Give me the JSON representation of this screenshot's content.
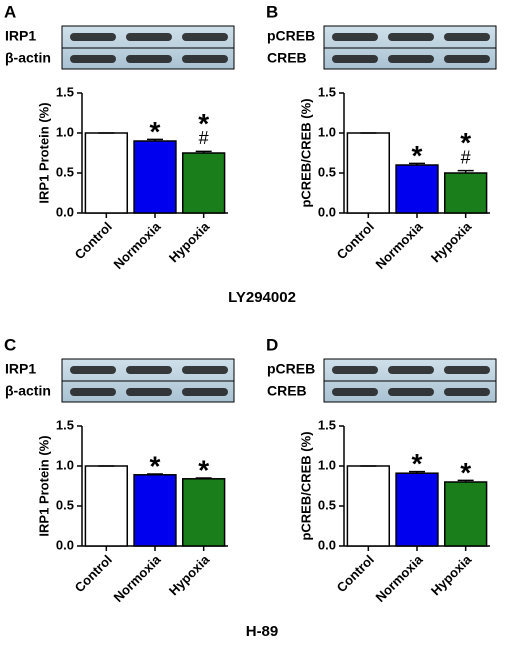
{
  "chart_data": [
    {
      "type": "bar",
      "panel": "A",
      "blot_labels": [
        "IRP1",
        "β-actin"
      ],
      "ylabel": "IRP1 Protein (%)",
      "categories": [
        "Control",
        "Normoxia",
        "Hypoxia"
      ],
      "values": [
        1.0,
        0.9,
        0.75
      ],
      "errors": [
        0,
        0.02,
        0.02
      ],
      "colors": [
        "#ffffff",
        "#0000ee",
        "#1a7f1a"
      ],
      "annotations": [
        {
          "category": "Normoxia",
          "text": "*"
        },
        {
          "category": "Hypoxia",
          "text": "*"
        },
        {
          "category": "Hypoxia",
          "text": "#"
        }
      ],
      "ylim": [
        0,
        1.5
      ],
      "yticks": [
        {
          "value": 0,
          "label": "0.0"
        },
        {
          "value": 0.5,
          "label": "0.5"
        },
        {
          "value": 1,
          "label": "1.0"
        },
        {
          "value": 1.5,
          "label": "1.5"
        }
      ]
    },
    {
      "type": "bar",
      "panel": "B",
      "blot_labels": [
        "pCREB",
        "CREB"
      ],
      "ylabel": "pCREB/CREB (%)",
      "categories": [
        "Control",
        "Normoxia",
        "Hypoxia"
      ],
      "values": [
        1.0,
        0.6,
        0.5
      ],
      "errors": [
        0,
        0.02,
        0.03
      ],
      "colors": [
        "#ffffff",
        "#0000ee",
        "#1a7f1a"
      ],
      "annotations": [
        {
          "category": "Normoxia",
          "text": "*"
        },
        {
          "category": "Hypoxia",
          "text": "*"
        },
        {
          "category": "Hypoxia",
          "text": "#"
        }
      ],
      "ylim": [
        0,
        1.5
      ],
      "yticks": [
        {
          "value": 0,
          "label": "0.0"
        },
        {
          "value": 0.5,
          "label": "0.5"
        },
        {
          "value": 1,
          "label": "1.0"
        },
        {
          "value": 1.5,
          "label": "1.5"
        }
      ]
    },
    {
      "type": "bar",
      "panel": "C",
      "blot_labels": [
        "IRP1",
        "β-actin"
      ],
      "ylabel": "IRP1 Protein (%)",
      "categories": [
        "Control",
        "Normoxia",
        "Hypoxia"
      ],
      "values": [
        1.0,
        0.89,
        0.84
      ],
      "errors": [
        0,
        0.01,
        0.01
      ],
      "colors": [
        "#ffffff",
        "#0000ee",
        "#1a7f1a"
      ],
      "annotations": [
        {
          "category": "Normoxia",
          "text": "*"
        },
        {
          "category": "Hypoxia",
          "text": "*"
        }
      ],
      "ylim": [
        0,
        1.5
      ],
      "yticks": [
        {
          "value": 0,
          "label": "0.0"
        },
        {
          "value": 0.5,
          "label": "0.5"
        },
        {
          "value": 1,
          "label": "1.0"
        },
        {
          "value": 1.5,
          "label": "1.5"
        }
      ]
    },
    {
      "type": "bar",
      "panel": "D",
      "blot_labels": [
        "pCREB",
        "CREB"
      ],
      "ylabel": "pCREB/CREB (%)",
      "categories": [
        "Control",
        "Normoxia",
        "Hypoxia"
      ],
      "values": [
        1.0,
        0.91,
        0.8
      ],
      "errors": [
        0,
        0.02,
        0.02
      ],
      "colors": [
        "#ffffff",
        "#0000ee",
        "#1a7f1a"
      ],
      "annotations": [
        {
          "category": "Normoxia",
          "text": "*"
        },
        {
          "category": "Hypoxia",
          "text": "*"
        }
      ],
      "ylim": [
        0,
        1.5
      ],
      "yticks": [
        {
          "value": 0,
          "label": "0.0"
        },
        {
          "value": 0.5,
          "label": "0.5"
        },
        {
          "value": 1,
          "label": "1.0"
        },
        {
          "value": 1.5,
          "label": "1.5"
        }
      ]
    }
  ],
  "group_labels": [
    "LY294002",
    "H-89"
  ]
}
